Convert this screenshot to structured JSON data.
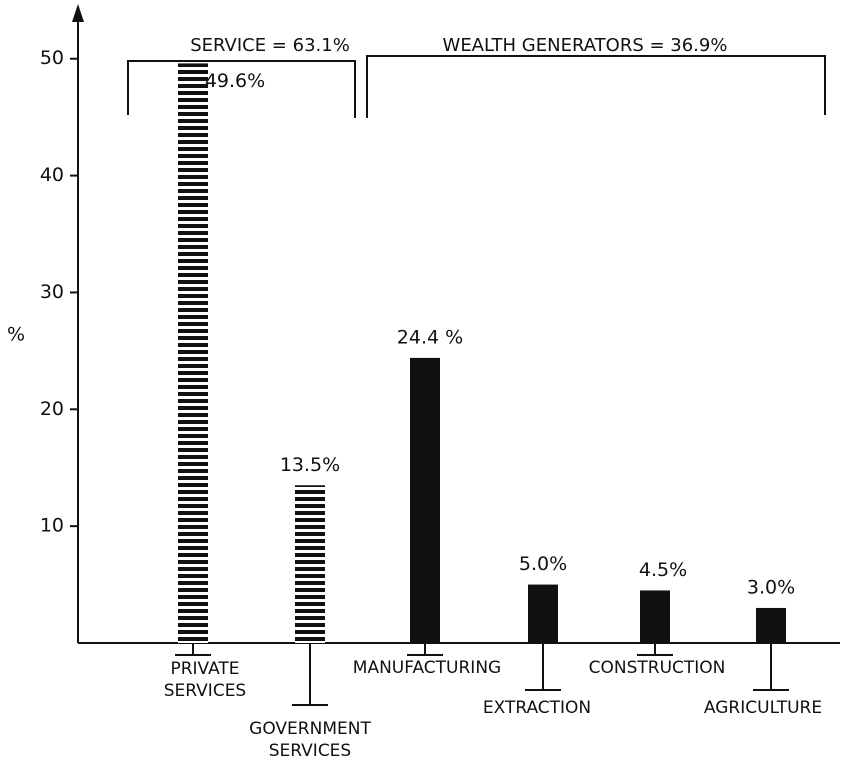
{
  "chart_data": {
    "type": "bar",
    "y_label": "%",
    "categories": [
      "PRIVATE\nSERVICES",
      "GOVERNMENT\nSERVICES",
      "MANUFACTURING",
      "EXTRACTION",
      "CONSTRUCTION",
      "AGRICULTURE"
    ],
    "values": [
      49.6,
      13.5,
      24.4,
      5.0,
      4.5,
      3.0
    ],
    "value_labels": [
      "49.6%",
      "13.5%",
      "24.4 %",
      "5.0%",
      "4.5%",
      "3.0%"
    ],
    "fills": [
      "hatched",
      "hatched",
      "solid",
      "solid",
      "solid",
      "solid"
    ],
    "color": "#111111",
    "groups": [
      {
        "label": "SERVICE = 63.1%"
      },
      {
        "label": "WEALTH  GENERATORS = 36.9%"
      }
    ],
    "ylim": [
      0,
      54
    ],
    "yticks": [
      10,
      20,
      30,
      40,
      50
    ]
  }
}
